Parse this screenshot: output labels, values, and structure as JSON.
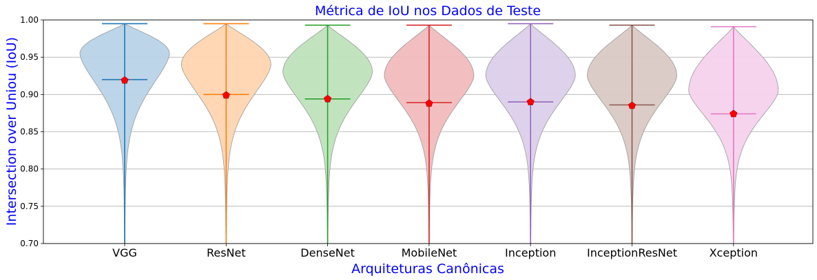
{
  "chart_data": {
    "type": "violin",
    "title": "Métrica de IoU nos Dados de Teste",
    "xlabel": "Arquiteturas Canônicas",
    "ylabel": "Intersection over Uniou (IoU)",
    "ylim": [
      0.7,
      1.0
    ],
    "yticks": [
      "0.70",
      "0.75",
      "0.80",
      "0.85",
      "0.90",
      "0.95",
      "1.00"
    ],
    "grid": "horizontal",
    "categories": [
      "VGG",
      "ResNet",
      "DenseNet",
      "MobileNet",
      "Inception",
      "InceptionResNet",
      "Xception"
    ],
    "series": [
      {
        "max": 0.995,
        "median": 0.92,
        "mean": 0.919,
        "mode": 0.955,
        "color": "#1f77b4",
        "fill": "#b8d3e8"
      },
      {
        "max": 0.995,
        "median": 0.9,
        "mean": 0.899,
        "mode": 0.94,
        "color": "#ff7f0e",
        "fill": "#ffd5b1"
      },
      {
        "max": 0.993,
        "median": 0.894,
        "mean": 0.894,
        "mode": 0.93,
        "color": "#2ca02c",
        "fill": "#bee3bc"
      },
      {
        "max": 0.993,
        "median": 0.889,
        "mean": 0.888,
        "mode": 0.925,
        "color": "#d62728",
        "fill": "#f1bbbc"
      },
      {
        "max": 0.995,
        "median": 0.89,
        "mean": 0.89,
        "mode": 0.925,
        "color": "#9467bd",
        "fill": "#dccfea"
      },
      {
        "max": 0.993,
        "median": 0.886,
        "mean": 0.885,
        "mode": 0.925,
        "color": "#8c564b",
        "fill": "#d9c9c5"
      },
      {
        "max": 0.991,
        "median": 0.874,
        "mean": 0.874,
        "mode": 0.905,
        "color": "#e377c2",
        "fill": "#f6d2ec"
      }
    ],
    "mean_marker_color": "#ff0000"
  }
}
